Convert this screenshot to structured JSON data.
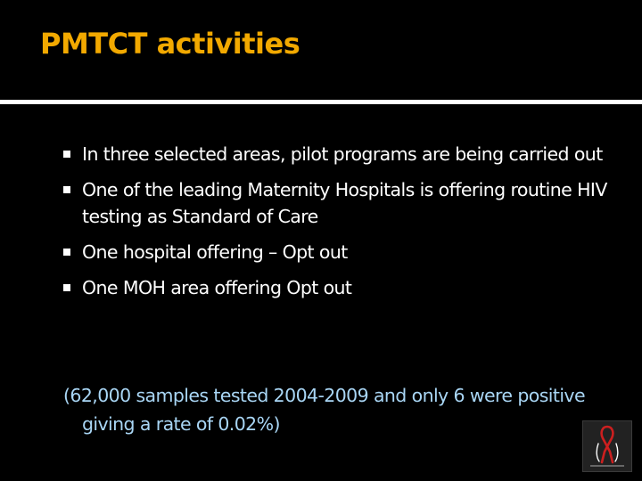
{
  "slide": {
    "title": "PMTCT activities",
    "bullets": [
      "In three selected areas, pilot programs are being carried out",
      "One of the leading Maternity Hospitals is offering routine HIV testing as Standard of Care",
      "One hospital offering – Opt out",
      "One MOH area offering Opt out"
    ],
    "note": "(62,000 samples tested 2004-2009 and only 6 were positive giving a rate of 0.02%)"
  },
  "colors": {
    "background": "#000000",
    "title": "#f2a900",
    "body_text": "#ffffff",
    "note_text": "#a9d6f5",
    "ribbon": "#cc1f1f"
  },
  "icons": {
    "bullet": "square-bullet-icon",
    "logo": "red-ribbon-logo"
  }
}
